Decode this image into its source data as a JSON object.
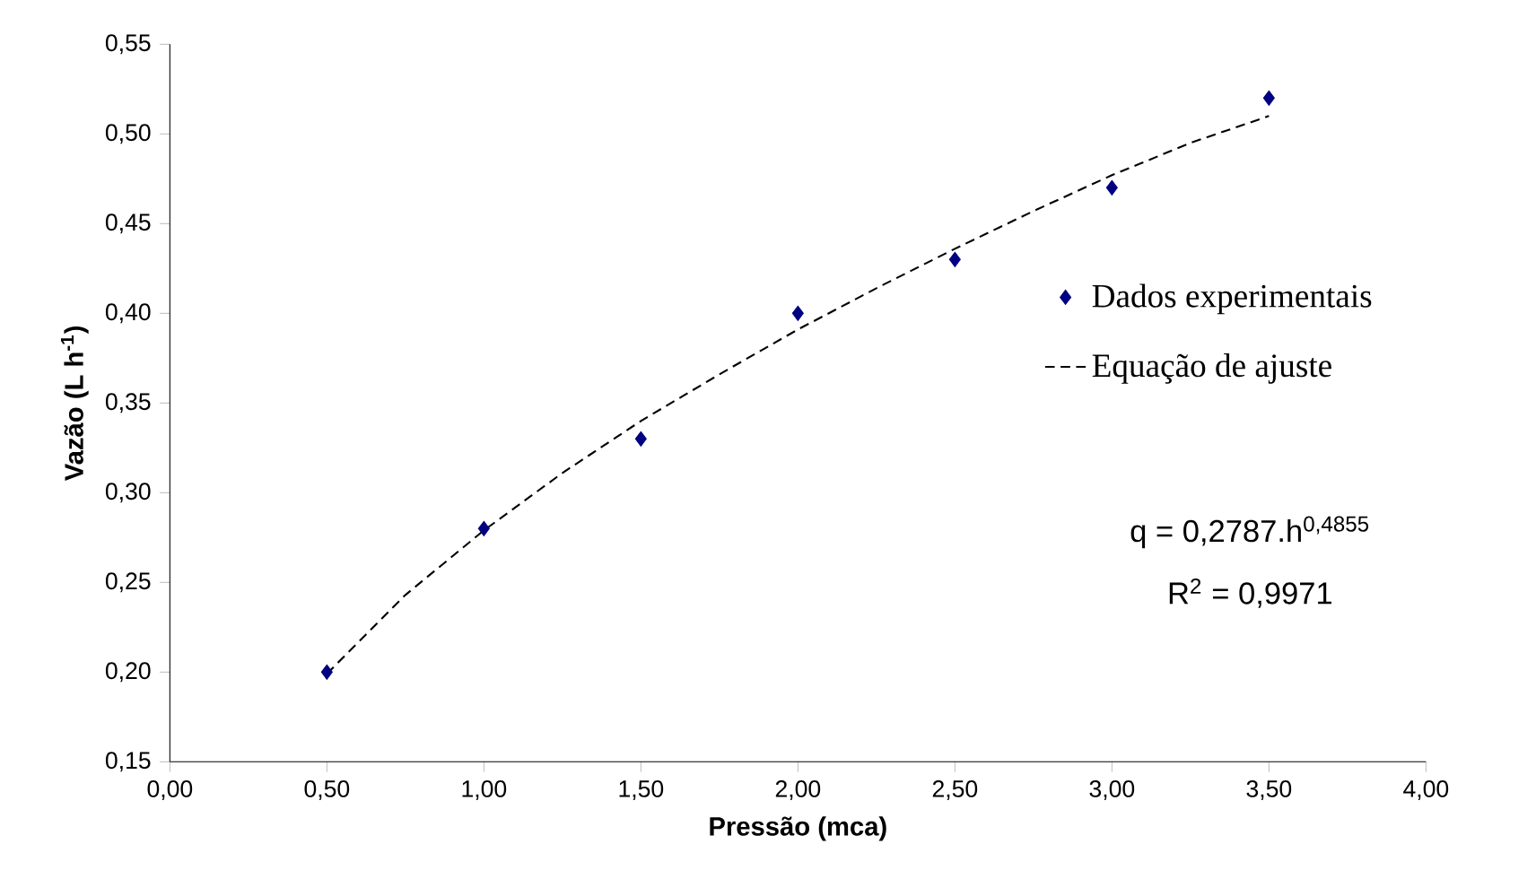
{
  "chart_data": {
    "type": "scatter",
    "xlabel": "Pressão (mca)",
    "ylabel": "Vazão (L h$^{-1}$)",
    "xlim": [
      0,
      4
    ],
    "ylim": [
      0.15,
      0.55
    ],
    "xticks": [
      {
        "value": 0,
        "label": "0,00"
      },
      {
        "value": 0.5,
        "label": "0,50"
      },
      {
        "value": 1,
        "label": "1,00"
      },
      {
        "value": 1.5,
        "label": "1,50"
      },
      {
        "value": 2,
        "label": "2,00"
      },
      {
        "value": 2.5,
        "label": "2,50"
      },
      {
        "value": 3,
        "label": "3,00"
      },
      {
        "value": 3.5,
        "label": "3,50"
      },
      {
        "value": 4,
        "label": "4,00"
      }
    ],
    "yticks": [
      {
        "value": 0.15,
        "label": "0,15"
      },
      {
        "value": 0.2,
        "label": "0,20"
      },
      {
        "value": 0.25,
        "label": "0,25"
      },
      {
        "value": 0.3,
        "label": "0,30"
      },
      {
        "value": 0.35,
        "label": "0,35"
      },
      {
        "value": 0.4,
        "label": "0,40"
      },
      {
        "value": 0.45,
        "label": "0,45"
      },
      {
        "value": 0.5,
        "label": "0,50"
      },
      {
        "value": 0.55,
        "label": "0,55"
      }
    ],
    "series": [
      {
        "name": "Dados experimentais",
        "marker": "diamond",
        "color": "#000080",
        "x": [
          0.5,
          1,
          1.5,
          2,
          2.5,
          3,
          3.5
        ],
        "values": [
          0.2,
          0.28,
          0.33,
          0.4,
          0.43,
          0.47,
          0.52
        ]
      },
      {
        "name": "Equação de ajuste",
        "type": "line",
        "line_style": "dashed",
        "color": "#000000",
        "x": [
          0.5,
          0.75,
          1,
          1.25,
          1.5,
          1.75,
          2,
          2.25,
          2.5,
          2.75,
          3,
          3.25,
          3.5
        ],
        "values": [
          0.199,
          0.243,
          0.279,
          0.311,
          0.34,
          0.366,
          0.391,
          0.414,
          0.436,
          0.457,
          0.477,
          0.495,
          0.51
        ]
      }
    ],
    "legend": "right",
    "grid": false,
    "annotations": [
      "q = 0,2787.h$^{0,4855}$",
      "R$^{2}$ = 0,9971"
    ]
  }
}
